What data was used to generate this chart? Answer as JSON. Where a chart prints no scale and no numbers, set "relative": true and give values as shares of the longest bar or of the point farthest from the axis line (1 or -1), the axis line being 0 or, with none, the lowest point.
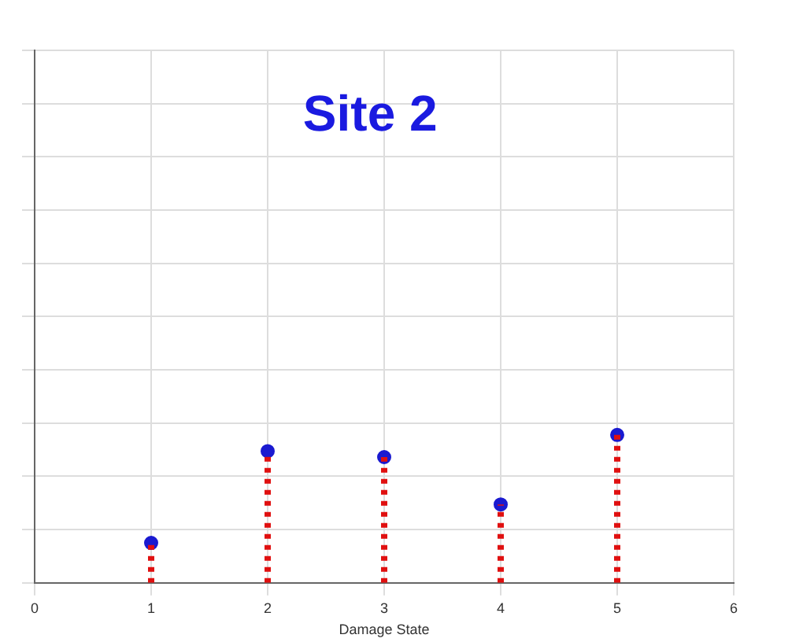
{
  "chart_data": {
    "type": "lollipop",
    "title": "Site 2",
    "xlabel": "Damage State",
    "relative": true,
    "x": [
      1,
      2,
      3,
      4,
      5
    ],
    "series": [
      {
        "color": "#1a1ad0",
        "values": [
          0.27,
          0.89,
          0.85,
          0.53,
          1
        ]
      }
    ],
    "xlim": [
      0,
      6
    ],
    "xticks": [
      0,
      1,
      2,
      3,
      4,
      5,
      6
    ],
    "grid": true,
    "tick_labels": "x",
    "marker": "circle",
    "line_style": "dotted",
    "legend": false
  }
}
